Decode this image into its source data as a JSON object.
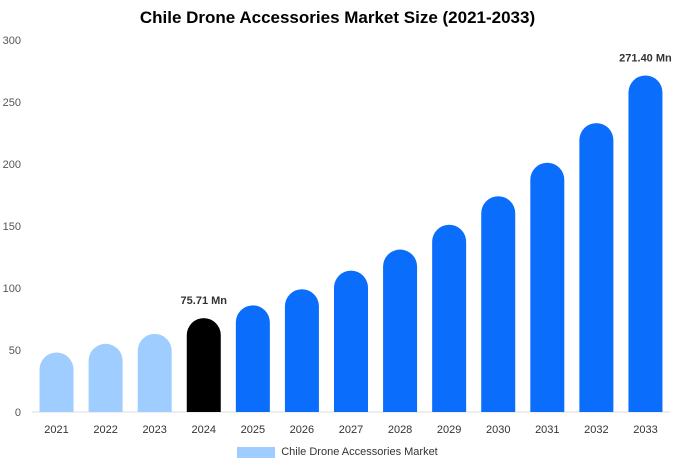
{
  "title": "Chile Drone Accessories Market Size (2021-2033)",
  "chart_data": {
    "type": "bar",
    "title": "Chile Drone Accessories Market Size (2021-2033)",
    "xlabel": "",
    "ylabel": "",
    "categories": [
      "2021",
      "2022",
      "2023",
      "2024",
      "2025",
      "2026",
      "2027",
      "2028",
      "2029",
      "2030",
      "2031",
      "2032",
      "2033"
    ],
    "values": [
      48,
      55,
      63,
      75.71,
      86,
      99,
      114,
      131,
      151,
      174,
      201,
      233,
      271.4
    ],
    "ylim": [
      0,
      300
    ],
    "yticks": [
      0,
      50,
      100,
      150,
      200,
      250,
      300
    ],
    "grid": false,
    "legend_placement": "bottom",
    "series": [
      {
        "name": "Chile Drone Accessories Market",
        "values": [
          48,
          55,
          63,
          75.71,
          86,
          99,
          114,
          131,
          151,
          174,
          201,
          233,
          271.4
        ]
      }
    ],
    "bar_colors": [
      "#a0cdff",
      "#a0cdff",
      "#a0cdff",
      "#000000",
      "#0b6dfb",
      "#0b6dfb",
      "#0b6dfb",
      "#0b6dfb",
      "#0b6dfb",
      "#0b6dfb",
      "#0b6dfb",
      "#0b6dfb",
      "#0b6dfb"
    ],
    "data_labels": [
      {
        "category": "2024",
        "text": "75.71 Mn"
      },
      {
        "category": "2033",
        "text": "271.40 Mn"
      }
    ]
  },
  "legend": {
    "label": "Chile Drone Accessories Market",
    "color": "#a0cdff"
  }
}
